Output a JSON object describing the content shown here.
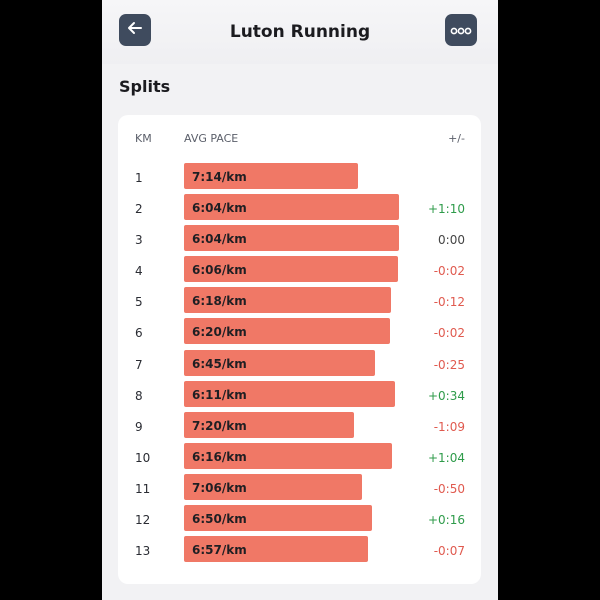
{
  "header": {
    "title": "Luton Running",
    "back_icon": "arrow-left-icon",
    "more_icon": "more-options-icon"
  },
  "section_title": "Splits",
  "table": {
    "columns": {
      "km": "KM",
      "pace": "AVG PACE",
      "diff": "+/-"
    },
    "rows": [
      {
        "km": "1",
        "pace": "7:14/km",
        "diff": ""
      },
      {
        "km": "2",
        "pace": "6:04/km",
        "diff": "+1:10"
      },
      {
        "km": "3",
        "pace": "6:04/km",
        "diff": "0:00"
      },
      {
        "km": "4",
        "pace": "6:06/km",
        "diff": "-0:02"
      },
      {
        "km": "5",
        "pace": "6:18/km",
        "diff": "-0:12"
      },
      {
        "km": "6",
        "pace": "6:20/km",
        "diff": "-0:02"
      },
      {
        "km": "7",
        "pace": "6:45/km",
        "diff": "-0:25"
      },
      {
        "km": "8",
        "pace": "6:11/km",
        "diff": "+0:34"
      },
      {
        "km": "9",
        "pace": "7:20/km",
        "diff": "-1:09"
      },
      {
        "km": "10",
        "pace": "6:16/km",
        "diff": "+1:04"
      },
      {
        "km": "11",
        "pace": "7:06/km",
        "diff": "-0:50"
      },
      {
        "km": "12",
        "pace": "6:50/km",
        "diff": "+0:16"
      },
      {
        "km": "13",
        "pace": "6:57/km",
        "diff": "-0:07"
      }
    ]
  },
  "colors": {
    "bar": "#f07866",
    "positive": "#2e9b4a",
    "negative": "#e05a4f",
    "neutral": "#444444",
    "button": "#3f4b5e"
  }
}
